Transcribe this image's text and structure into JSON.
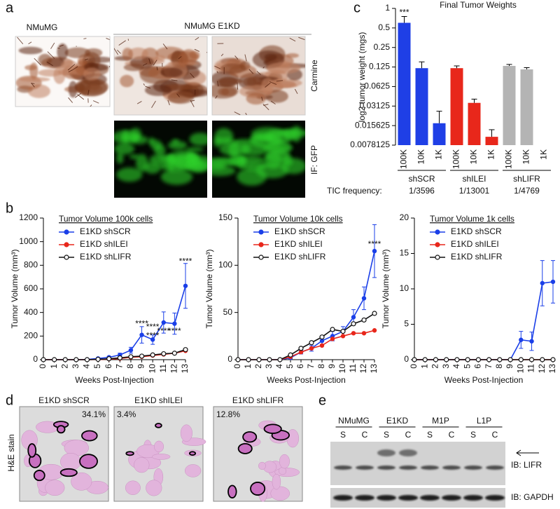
{
  "panels": {
    "a": {
      "letter": "a",
      "headers": [
        "NMuMG",
        "NMuMG E1KD"
      ],
      "row_labels": [
        "Carmine",
        "IF: GFP"
      ]
    },
    "b": {
      "letter": "b"
    },
    "c": {
      "letter": "c"
    },
    "d": {
      "letter": "d",
      "side_label": "H&E stain",
      "images": [
        {
          "label": "E1KD shSCR",
          "percent": "34.1%"
        },
        {
          "label": "E1KD shILEI",
          "percent": "3.4%"
        },
        {
          "label": "E1KD shLIFR",
          "percent": "12.8%"
        }
      ]
    },
    "e": {
      "letter": "e",
      "groups": [
        "NMuMG",
        "E1KD",
        "M1P",
        "L1P"
      ],
      "lanes": [
        "S",
        "C",
        "S",
        "C",
        "S",
        "C",
        "S",
        "C"
      ],
      "blots": [
        "IB: LIFR",
        "IB: GAPDH"
      ]
    }
  },
  "chart_data": [
    {
      "type": "bar",
      "title": "Final Tumor Weights",
      "ylabel": "log2  tumor weight (mgs)",
      "log_scale": true,
      "categories": [
        "100K",
        "10K",
        "1K",
        "100K",
        "10K",
        "1K",
        "100K",
        "10K",
        "1K"
      ],
      "values": [
        0.6,
        0.12,
        0.017,
        0.12,
        0.035,
        0.0105,
        0.13,
        0.115,
        null
      ],
      "errors": [
        0.15,
        0.03,
        0.009,
        0.01,
        0.005,
        0.003,
        0.007,
        0.007,
        null
      ],
      "colors": [
        "#1f3fe6",
        "#1f3fe6",
        "#1f3fe6",
        "#e8271b",
        "#e8271b",
        "#e8271b",
        "#b4b4b4",
        "#b4b4b4",
        "#b4b4b4"
      ],
      "ylim": [
        0.0078125,
        1
      ],
      "yticks": [
        0.0078125,
        0.015625,
        0.03125,
        0.0625,
        0.125,
        0.25,
        0.5,
        1
      ],
      "groups": [
        {
          "name": "shSCR",
          "tic": "1/3596"
        },
        {
          "name": "shILEI",
          "tic": "1/13001"
        },
        {
          "name": "shLIFR",
          "tic": "1/4769"
        }
      ],
      "tic_label": "TIC frequency:",
      "annotations": [
        {
          "index": 0,
          "text": "***"
        }
      ]
    },
    {
      "type": "line",
      "title": "Tumor Volume 100k cells",
      "xlabel": "Weeks Post-Injection",
      "ylabel": "Tumor Volume (mm³)",
      "x": [
        0,
        1,
        2,
        3,
        4,
        5,
        6,
        7,
        8,
        9,
        10,
        11,
        12,
        13
      ],
      "xlim": [
        0,
        13
      ],
      "xticks": [
        0,
        1,
        2,
        3,
        4,
        5,
        6,
        7,
        8,
        9,
        10,
        11,
        12,
        13
      ],
      "ylim": [
        0,
        1200
      ],
      "yticks": [
        0,
        200,
        400,
        600,
        800,
        1000,
        1200
      ],
      "series": [
        {
          "name": "E1KD shSCR",
          "color": "#1a3fe8",
          "marker": "filled",
          "values": [
            0,
            0,
            0,
            0,
            2,
            10,
            20,
            40,
            80,
            210,
            170,
            315,
            305,
            625
          ],
          "errors": [
            0,
            0,
            0,
            0,
            2,
            5,
            8,
            15,
            25,
            70,
            40,
            90,
            90,
            190
          ]
        },
        {
          "name": "E1KD shILEI",
          "color": "#e8271b",
          "marker": "filled",
          "values": [
            0,
            0,
            0,
            0,
            0,
            2,
            5,
            10,
            20,
            25,
            35,
            45,
            55,
            75
          ]
        },
        {
          "name": "E1KD shLIFR",
          "color": "#111111",
          "marker": "open",
          "values": [
            0,
            0,
            0,
            0,
            0,
            3,
            8,
            15,
            25,
            30,
            40,
            50,
            55,
            85
          ]
        }
      ],
      "annotations": [
        {
          "x": 9,
          "y": 300,
          "text": "****"
        },
        {
          "x": 10,
          "y": 275,
          "text": "****"
        },
        {
          "x": 10,
          "y": 200,
          "text": "****"
        },
        {
          "x": 11,
          "y": 240,
          "text": "****"
        },
        {
          "x": 12,
          "y": 240,
          "text": "****"
        },
        {
          "x": 13,
          "y": 830,
          "text": "****"
        }
      ]
    },
    {
      "type": "line",
      "title": "Tumor Volume 10k cells",
      "xlabel": "Weeks Post-Injection",
      "ylabel": "Tumor Volume (mm³)",
      "x": [
        0,
        1,
        2,
        3,
        4,
        5,
        6,
        7,
        8,
        9,
        10,
        11,
        12,
        13
      ],
      "xlim": [
        0,
        13
      ],
      "xticks": [
        0,
        1,
        2,
        3,
        4,
        5,
        6,
        7,
        8,
        9,
        10,
        11,
        12,
        13
      ],
      "ylim": [
        0,
        150
      ],
      "yticks": [
        0,
        50,
        100,
        150
      ],
      "series": [
        {
          "name": "E1KD shSCR",
          "color": "#1a3fe8",
          "marker": "filled",
          "values": [
            0,
            0,
            0,
            0,
            0,
            2,
            8,
            12,
            20,
            25,
            30,
            45,
            65,
            115
          ],
          "errors": [
            0,
            0,
            0,
            0,
            0,
            1,
            2,
            3,
            4,
            5,
            5,
            8,
            12,
            28
          ]
        },
        {
          "name": "E1KD shILEI",
          "color": "#e8271b",
          "marker": "filled",
          "values": [
            0,
            0,
            0,
            0,
            0,
            3,
            8,
            12,
            15,
            22,
            25,
            28,
            28,
            31
          ]
        },
        {
          "name": "E1KD shLIFR",
          "color": "#111111",
          "marker": "open",
          "values": [
            0,
            0,
            0,
            0,
            0,
            5,
            12,
            18,
            24,
            32,
            30,
            38,
            42,
            49
          ]
        }
      ],
      "annotations": [
        {
          "x": 13,
          "y": 122,
          "text": "****",
          "color": "#e8271b"
        }
      ]
    },
    {
      "type": "line",
      "title": "Tumor Volume 1k cells",
      "xlabel": "Weeks Post-Injection",
      "ylabel": "Tumor Volume (mm³)",
      "x": [
        0,
        1,
        2,
        3,
        4,
        5,
        6,
        7,
        8,
        9,
        10,
        11,
        12,
        13
      ],
      "xlim": [
        0,
        13
      ],
      "xticks": [
        0,
        1,
        2,
        3,
        4,
        5,
        6,
        7,
        8,
        9,
        10,
        11,
        12,
        13
      ],
      "ylim": [
        0,
        20
      ],
      "yticks": [
        0,
        5,
        10,
        15,
        20
      ],
      "series": [
        {
          "name": "E1KD shSCR",
          "color": "#1a3fe8",
          "marker": "filled",
          "values": [
            0,
            0,
            0,
            0,
            0,
            0,
            0,
            0,
            0,
            0,
            2.8,
            2.6,
            10.8,
            11
          ],
          "errors": [
            0,
            0,
            0,
            0,
            0,
            0,
            0,
            0,
            0,
            0,
            1.2,
            1.3,
            3.2,
            3
          ]
        },
        {
          "name": "E1KD shILEI",
          "color": "#e8271b",
          "marker": "filled",
          "values": [
            0,
            0,
            0,
            0,
            0,
            0,
            0,
            0,
            0,
            0,
            0,
            0,
            0,
            0
          ]
        },
        {
          "name": "E1KD shLIFR",
          "color": "#111111",
          "marker": "open",
          "values": [
            0,
            0,
            0,
            0,
            0,
            0,
            0,
            0,
            0,
            0,
            0,
            0,
            0,
            0
          ]
        }
      ]
    }
  ]
}
